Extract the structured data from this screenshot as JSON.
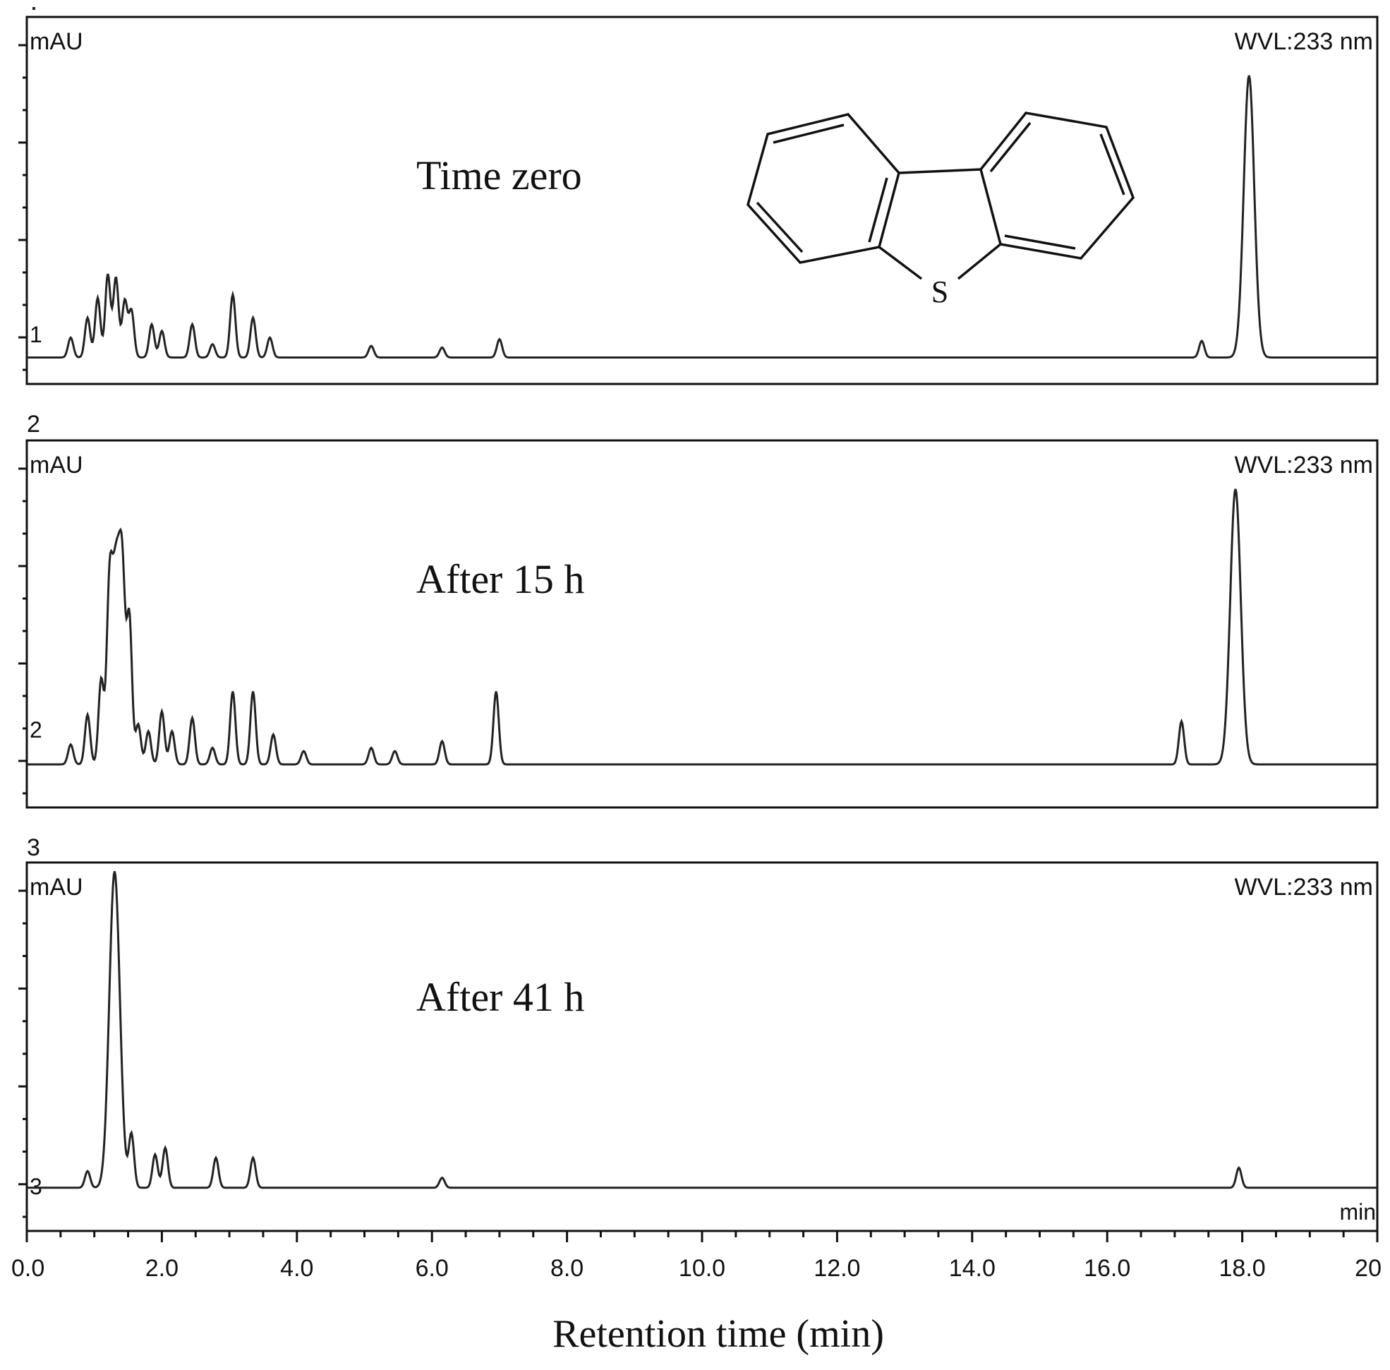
{
  "chart_data": {
    "type": "line",
    "xlabel": "Retention time (min)",
    "x_unit": "min",
    "xlim": [
      0,
      20
    ],
    "x_ticks": [
      "0.0",
      "2.0",
      "4.0",
      "6.0",
      "8.0",
      "10.0",
      "12.0",
      "14.0",
      "16.0",
      "18.0",
      "20"
    ],
    "x_tick_values": [
      0,
      2,
      4,
      6,
      8,
      10,
      12,
      14,
      16,
      18,
      20
    ],
    "ylabel": "mAU",
    "wavelength": "WVL:233 nm",
    "grid": false,
    "molecule": {
      "name": "dibenzothiophene",
      "heteroatom_label": "S"
    },
    "panels": [
      {
        "number": "1",
        "trace_label": "1",
        "annotation": "Time zero",
        "baseline_level": 0.05,
        "series": [
          {
            "peaks": [
              {
                "t": 0.65,
                "h": 0.06
              },
              {
                "t": 0.9,
                "h": 0.12
              },
              {
                "t": 1.05,
                "h": 0.18
              },
              {
                "t": 1.2,
                "h": 0.25
              },
              {
                "t": 1.32,
                "h": 0.24
              },
              {
                "t": 1.45,
                "h": 0.17
              },
              {
                "t": 1.55,
                "h": 0.14
              },
              {
                "t": 1.85,
                "h": 0.1
              },
              {
                "t": 2.0,
                "h": 0.08
              },
              {
                "t": 2.45,
                "h": 0.1
              },
              {
                "t": 2.75,
                "h": 0.04
              },
              {
                "t": 3.05,
                "h": 0.19
              },
              {
                "t": 3.35,
                "h": 0.12
              },
              {
                "t": 3.6,
                "h": 0.06
              },
              {
                "t": 5.1,
                "h": 0.035
              },
              {
                "t": 6.15,
                "h": 0.03
              },
              {
                "t": 7.0,
                "h": 0.055
              },
              {
                "t": 17.4,
                "h": 0.05
              },
              {
                "t": 18.1,
                "h": 0.85
              }
            ]
          }
        ]
      },
      {
        "number": "2",
        "trace_label": "2",
        "annotation": "After 15 h",
        "baseline_level": 0.1,
        "series": [
          {
            "peaks": [
              {
                "t": 0.65,
                "h": 0.06
              },
              {
                "t": 0.9,
                "h": 0.15
              },
              {
                "t": 1.1,
                "h": 0.25
              },
              {
                "t": 1.22,
                "h": 0.35
              },
              {
                "t": 1.33,
                "h": 0.65
              },
              {
                "t": 1.42,
                "h": 0.3
              },
              {
                "t": 1.52,
                "h": 0.42
              },
              {
                "t": 1.65,
                "h": 0.12
              },
              {
                "t": 1.8,
                "h": 0.1
              },
              {
                "t": 2.0,
                "h": 0.16
              },
              {
                "t": 2.15,
                "h": 0.1
              },
              {
                "t": 2.45,
                "h": 0.14
              },
              {
                "t": 2.75,
                "h": 0.05
              },
              {
                "t": 3.05,
                "h": 0.22
              },
              {
                "t": 3.35,
                "h": 0.22
              },
              {
                "t": 3.65,
                "h": 0.09
              },
              {
                "t": 4.1,
                "h": 0.04
              },
              {
                "t": 5.1,
                "h": 0.05
              },
              {
                "t": 5.45,
                "h": 0.04
              },
              {
                "t": 6.15,
                "h": 0.07
              },
              {
                "t": 6.95,
                "h": 0.22
              },
              {
                "t": 17.1,
                "h": 0.13
              },
              {
                "t": 17.9,
                "h": 0.83
              }
            ]
          }
        ]
      },
      {
        "number": "3",
        "trace_label": "3",
        "annotation": "After 41 h",
        "baseline_level": 0.1,
        "series": [
          {
            "peaks": [
              {
                "t": 0.9,
                "h": 0.05
              },
              {
                "t": 1.3,
                "h": 0.95
              },
              {
                "t": 1.55,
                "h": 0.16
              },
              {
                "t": 1.9,
                "h": 0.1
              },
              {
                "t": 2.05,
                "h": 0.12
              },
              {
                "t": 2.8,
                "h": 0.09
              },
              {
                "t": 3.35,
                "h": 0.09
              },
              {
                "t": 6.15,
                "h": 0.03
              },
              {
                "t": 17.95,
                "h": 0.06
              }
            ]
          }
        ]
      }
    ]
  }
}
